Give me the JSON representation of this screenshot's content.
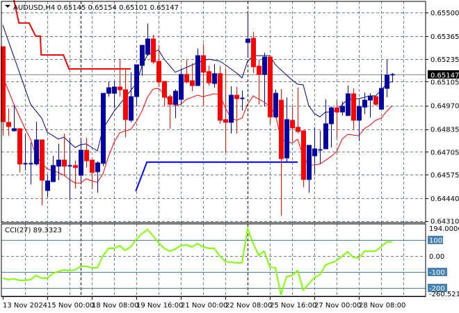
{
  "header": {
    "symbol": "AUDUSD,H4",
    "ohlc": "0.65145 0.65154 0.65101 0.65147"
  },
  "colors": {
    "bull": "#0000a0",
    "bear": "#ff0000",
    "doji": "#00cc00",
    "ma": "#000080",
    "env": "#ff0000",
    "stop": "#ff0000",
    "support": "#0000ff",
    "cci": "#80ff00",
    "level": "#4682b4",
    "grid": "#708090"
  },
  "price_axis": [
    {
      "label": "0.65500",
      "value": 0.655
    },
    {
      "label": "0.65365",
      "value": 0.65365
    },
    {
      "label": "0.65235",
      "value": 0.65235
    },
    {
      "label": "0.65105",
      "value": 0.65105
    },
    {
      "label": "0.64970",
      "value": 0.6497
    },
    {
      "label": "0.64835",
      "value": 0.64835
    },
    {
      "label": "0.64705",
      "value": 0.64705
    },
    {
      "label": "0.64575",
      "value": 0.64575
    },
    {
      "label": "0.64440",
      "value": 0.6444
    },
    {
      "label": "0.64310",
      "value": 0.6431
    }
  ],
  "current_price": {
    "label": "0.65147",
    "value": 0.65147
  },
  "time_axis": [
    "13 Nov 2024",
    "15 Nov 00:00",
    "18 Nov 08:00",
    "19 Nov 16:00",
    "21 Nov 00:00",
    "22 Nov 08:00",
    "25 Nov 16:00",
    "27 Nov 00:00",
    "28 Nov 08:00"
  ],
  "chart_data": {
    "type": "candlestick",
    "ohlc": [
      [
        0.65305,
        0.65305,
        0.64797,
        0.64877
      ],
      [
        0.64873,
        0.64952,
        0.64797,
        0.64849
      ],
      [
        0.64825,
        0.64972,
        0.64821,
        0.64837
      ],
      [
        0.64837,
        0.64837,
        0.64587,
        0.64635
      ],
      [
        0.64639,
        0.64805,
        0.64599,
        0.64639
      ],
      [
        0.64635,
        0.64758,
        0.64519,
        0.64639
      ],
      [
        0.64635,
        0.64877,
        0.64627,
        0.64773
      ],
      [
        0.64773,
        0.64773,
        0.644,
        0.64543
      ],
      [
        0.64484,
        0.64571,
        0.64448,
        0.64539
      ],
      [
        0.64535,
        0.64682,
        0.64531,
        0.64627
      ],
      [
        0.64623,
        0.6475,
        0.64543,
        0.64658
      ],
      [
        0.64658,
        0.64809,
        0.64571,
        0.64623
      ],
      [
        0.64627,
        0.64785,
        0.64428,
        0.64627
      ],
      [
        0.64627,
        0.64654,
        0.64496,
        0.64615
      ],
      [
        0.64571,
        0.64781,
        0.64531,
        0.64714
      ],
      [
        0.64714,
        0.64785,
        0.64615,
        0.64654
      ],
      [
        0.64658,
        0.64658,
        0.64496,
        0.64587
      ],
      [
        0.64591,
        0.6465,
        0.64472,
        0.64642
      ],
      [
        0.64639,
        0.65039,
        0.64623,
        0.65039
      ],
      [
        0.65039,
        0.65107,
        0.6502,
        0.65071
      ],
      [
        0.65039,
        0.65107,
        0.64956,
        0.65075
      ],
      [
        0.65075,
        0.65234,
        0.6502,
        0.65059
      ],
      [
        0.65059,
        0.65174,
        0.64789,
        0.64889
      ],
      [
        0.64885,
        0.65159,
        0.64873,
        0.6502
      ],
      [
        0.6502,
        0.65202,
        0.64964,
        0.65202
      ],
      [
        0.65198,
        0.65313,
        0.65139,
        0.65313
      ],
      [
        0.65262,
        0.65437,
        0.65254,
        0.65349
      ],
      [
        0.65349,
        0.65373,
        0.65206,
        0.65218
      ],
      [
        0.65222,
        0.65313,
        0.65075,
        0.65103
      ],
      [
        0.65107,
        0.65107,
        0.64964,
        0.65016
      ],
      [
        0.6502,
        0.65032,
        0.64837,
        0.64976
      ],
      [
        0.64976,
        0.65063,
        0.64897,
        0.65051
      ],
      [
        0.65004,
        0.65182,
        0.64976,
        0.65147
      ],
      [
        0.65147,
        0.6523,
        0.65095,
        0.65103
      ],
      [
        0.65111,
        0.6521,
        0.65051,
        0.65083
      ],
      [
        0.65083,
        0.65294,
        0.65083,
        0.65254
      ],
      [
        0.65254,
        0.65321,
        0.64964,
        0.65159
      ],
      [
        0.65163,
        0.65198,
        0.65083,
        0.65099
      ],
      [
        0.65095,
        0.65206,
        0.65071,
        0.65151
      ],
      [
        0.65151,
        0.65194,
        0.64865,
        0.64885
      ],
      [
        0.64889,
        0.65182,
        0.64702,
        0.64873
      ],
      [
        0.64873,
        0.65079,
        0.64809,
        0.65028
      ],
      [
        0.65028,
        0.65075,
        0.64809,
        0.65008
      ],
      [
        0.65012,
        0.65055,
        0.6494,
        0.65012
      ],
      [
        0.65329,
        0.65492,
        0.65254,
        0.65349
      ],
      [
        0.65353,
        0.65389,
        0.65155,
        0.6519
      ],
      [
        0.65194,
        0.6523,
        0.64976,
        0.65147
      ],
      [
        0.65147,
        0.6527,
        0.64964,
        0.65246
      ],
      [
        0.65246,
        0.65254,
        0.64865,
        0.64904
      ],
      [
        0.64904,
        0.65059,
        0.64897,
        0.65039
      ],
      [
        0.65,
        0.65063,
        0.64341,
        0.64666
      ],
      [
        0.6467,
        0.65016,
        0.64642,
        0.64889
      ],
      [
        0.64885,
        0.64968,
        0.64762,
        0.64841
      ],
      [
        0.64845,
        0.65071,
        0.64809,
        0.64821
      ],
      [
        0.64825,
        0.64825,
        0.64504,
        0.64547
      ],
      [
        0.64547,
        0.64742,
        0.64472,
        0.64742
      ],
      [
        0.64682,
        0.64845,
        0.64579,
        0.64722
      ],
      [
        0.64718,
        0.64825,
        0.64639,
        0.64718
      ],
      [
        0.64722,
        0.65004,
        0.64722,
        0.64865
      ],
      [
        0.64865,
        0.64964,
        0.6473,
        0.64956
      ],
      [
        0.64956,
        0.64992,
        0.64785,
        0.64932
      ],
      [
        0.64932,
        0.64992,
        0.64912,
        0.64964
      ],
      [
        0.64912,
        0.65083,
        0.64912,
        0.65036
      ],
      [
        0.65036,
        0.65067,
        0.64833,
        0.64885
      ],
      [
        0.64885,
        0.65004,
        0.64766,
        0.64964
      ],
      [
        0.6496,
        0.65043,
        0.6492,
        0.65
      ],
      [
        0.65,
        0.65039,
        0.64901,
        0.65024
      ],
      [
        0.6502,
        0.6502,
        0.64968,
        0.64976
      ],
      [
        0.64948,
        0.65151,
        0.64948,
        0.65067
      ],
      [
        0.65067,
        0.6523,
        0.65016,
        0.65143
      ],
      [
        0.65145,
        0.65154,
        0.65101,
        0.65147
      ]
    ],
    "ma_line": [
      [
        0,
        0.65429
      ],
      [
        5,
        0.64976
      ],
      [
        7,
        0.64897
      ],
      [
        8,
        0.64817
      ],
      [
        10,
        0.64777
      ],
      [
        11,
        0.64789
      ],
      [
        12,
        0.64758
      ],
      [
        13,
        0.6473
      ],
      [
        14,
        0.64746
      ],
      [
        15,
        0.6475
      ],
      [
        16,
        0.6473
      ],
      [
        17,
        0.6471
      ],
      [
        18,
        0.64837
      ],
      [
        20,
        0.64936
      ],
      [
        22,
        0.65016
      ],
      [
        24,
        0.65095
      ],
      [
        25,
        0.65194
      ],
      [
        26,
        0.65258
      ],
      [
        28,
        0.65286
      ],
      [
        29,
        0.65234
      ],
      [
        31,
        0.65159
      ],
      [
        33,
        0.65186
      ],
      [
        35,
        0.65214
      ],
      [
        37,
        0.65234
      ],
      [
        39,
        0.65222
      ],
      [
        40,
        0.65202
      ],
      [
        42,
        0.65155
      ],
      [
        43,
        0.65127
      ],
      [
        44,
        0.65222
      ],
      [
        45,
        0.65254
      ],
      [
        47,
        0.65254
      ],
      [
        48,
        0.65254
      ],
      [
        49,
        0.65202
      ],
      [
        51,
        0.65143
      ],
      [
        52,
        0.65115
      ],
      [
        53,
        0.65091
      ],
      [
        54,
        0.65087
      ],
      [
        55,
        0.64968
      ],
      [
        56,
        0.64924
      ],
      [
        57,
        0.64904
      ],
      [
        58,
        0.64932
      ],
      [
        59,
        0.64932
      ],
      [
        60,
        0.64944
      ],
      [
        62,
        0.65004
      ],
      [
        64,
        0.65008
      ],
      [
        66,
        0.65024
      ],
      [
        67,
        0.65024
      ],
      [
        68,
        0.65055
      ],
      [
        69,
        0.65095
      ],
      [
        70,
        0.65107
      ]
    ],
    "lower_band": [
      [
        0,
        0.65135
      ],
      [
        2,
        0.64976
      ],
      [
        4,
        0.64837
      ],
      [
        5,
        0.64777
      ],
      [
        6,
        0.64678
      ],
      [
        8,
        0.64607
      ],
      [
        10,
        0.64587
      ],
      [
        11,
        0.64571
      ],
      [
        12,
        0.64547
      ],
      [
        13,
        0.64527
      ],
      [
        14,
        0.64527
      ],
      [
        15,
        0.64551
      ],
      [
        16,
        0.64539
      ],
      [
        17,
        0.64531
      ],
      [
        18,
        0.64579
      ],
      [
        19,
        0.64678
      ],
      [
        20,
        0.64758
      ],
      [
        21,
        0.64813
      ],
      [
        23,
        0.64833
      ],
      [
        24,
        0.64877
      ],
      [
        25,
        0.64936
      ],
      [
        26,
        0.65016
      ],
      [
        27,
        0.65063
      ],
      [
        28,
        0.65067
      ],
      [
        29,
        0.65036
      ],
      [
        30,
        0.64992
      ],
      [
        31,
        0.64968
      ],
      [
        32,
        0.64976
      ],
      [
        33,
        0.65004
      ],
      [
        35,
        0.65028
      ],
      [
        36,
        0.6502
      ],
      [
        38,
        0.65036
      ],
      [
        39,
        0.65032
      ],
      [
        40,
        0.64956
      ],
      [
        41,
        0.64897
      ],
      [
        42,
        0.64885
      ],
      [
        43,
        0.64897
      ],
      [
        44,
        0.64976
      ],
      [
        45,
        0.65024
      ],
      [
        47,
        0.64988
      ],
      [
        48,
        0.64964
      ],
      [
        49,
        0.6492
      ],
      [
        50,
        0.64777
      ],
      [
        52,
        0.64754
      ],
      [
        53,
        0.64777
      ],
      [
        54,
        0.64678
      ],
      [
        55,
        0.64627
      ],
      [
        57,
        0.64635
      ],
      [
        59,
        0.64678
      ],
      [
        60,
        0.64706
      ],
      [
        61,
        0.64777
      ],
      [
        62,
        0.64805
      ],
      [
        64,
        0.64797
      ],
      [
        65,
        0.64837
      ],
      [
        66,
        0.64857
      ],
      [
        67,
        0.64885
      ],
      [
        68,
        0.64897
      ],
      [
        69,
        0.64936
      ],
      [
        70,
        0.64968
      ]
    ],
    "stop_line": [
      [
        2.0,
        0.65571
      ],
      [
        2.9,
        0.6544
      ],
      [
        4.75,
        0.6544
      ],
      [
        5.9,
        0.65365
      ],
      [
        6.75,
        0.65365
      ],
      [
        6.9,
        0.65258
      ],
      [
        10.9,
        0.65258
      ],
      [
        11.9,
        0.65178
      ],
      [
        23.0,
        0.65178
      ]
    ],
    "support_line": [
      [
        23.9,
        0.6448
      ],
      [
        25.9,
        0.64646
      ],
      [
        53.0,
        0.64646
      ]
    ],
    "cci": {
      "label": "CCI(27) 89.3323",
      "max_label": "194.0006",
      "min_label": "-260.521",
      "zero_label": "0.00",
      "levels": [
        {
          "label": "100",
          "value": 100
        },
        {
          "label": "-100",
          "value": -100
        },
        {
          "label": "-200",
          "value": -200
        }
      ],
      "values": [
        -139,
        -148,
        -143,
        -152,
        -152,
        -148,
        -122,
        -139,
        -139,
        -109,
        -96,
        -87,
        -91,
        -87,
        -65,
        -65,
        -74,
        -74,
        0,
        48,
        48,
        65,
        35,
        57,
        104,
        139,
        165,
        126,
        83,
        48,
        30,
        43,
        65,
        70,
        57,
        78,
        57,
        48,
        48,
        0,
        -35,
        -39,
        -43,
        -43,
        170,
        78,
        4,
        30,
        -70,
        -74,
        -243,
        -130,
        -122,
        -91,
        -213,
        -174,
        -135,
        -117,
        -57,
        -43,
        -30,
        0,
        26,
        -9,
        -13,
        30,
        30,
        30,
        57,
        87,
        89
      ]
    }
  }
}
